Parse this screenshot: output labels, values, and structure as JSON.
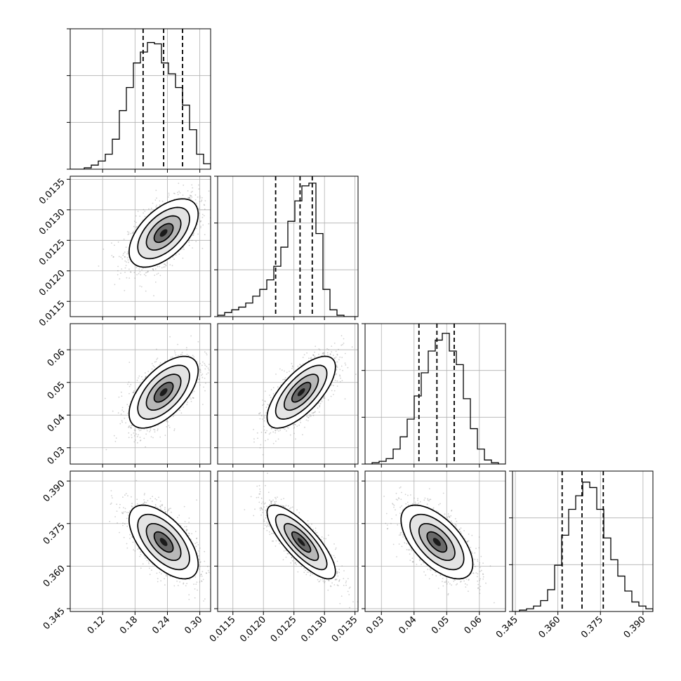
{
  "chart_data": {
    "type": "corner",
    "parameters": [
      {
        "range": [
          0.06,
          0.32
        ],
        "ticks": [
          0.12,
          0.18,
          0.24,
          0.3
        ],
        "tick_labels": [
          "0.12",
          "0.18",
          "0.24",
          "0.30"
        ],
        "quantiles": [
          0.195,
          0.233,
          0.268
        ],
        "median": 0.233,
        "sd": 0.032,
        "hist_ymax": 1.0
      },
      {
        "range": [
          0.01125,
          0.01355
        ],
        "ticks": [
          0.0115,
          0.012,
          0.0125,
          0.013,
          0.0135
        ],
        "tick_labels": [
          "0.0115",
          "0.0120",
          "0.0125",
          "0.0130",
          "0.0135"
        ],
        "quantiles": [
          0.0122,
          0.0126,
          0.0128
        ],
        "median": 0.01262,
        "sd": 0.00028,
        "hist_ymax": 1.0
      },
      {
        "range": [
          0.025,
          0.068
        ],
        "ticks": [
          0.03,
          0.04,
          0.05,
          0.06
        ],
        "tick_labels": [
          "0.03",
          "0.04",
          "0.05",
          "0.06"
        ],
        "quantiles": [
          0.0415,
          0.047,
          0.0523
        ],
        "median": 0.047,
        "sd": 0.0055,
        "hist_ymax": 1.0
      },
      {
        "range": [
          0.344,
          0.3935
        ],
        "ticks": [
          0.345,
          0.36,
          0.375,
          0.39
        ],
        "tick_labels": [
          "0.345",
          "0.360",
          "0.375",
          "0.390"
        ],
        "quantiles": [
          0.3615,
          0.3685,
          0.376
        ],
        "median": 0.3685,
        "sd": 0.0065,
        "hist_ymax": 1.0
      }
    ],
    "histograms": [
      [
        0.0,
        0.0,
        0.01,
        0.03,
        0.06,
        0.11,
        0.22,
        0.43,
        0.6,
        0.78,
        0.86,
        0.93,
        0.92,
        0.78,
        0.7,
        0.6,
        0.47,
        0.29,
        0.11,
        0.04
      ],
      [
        0.01,
        0.03,
        0.05,
        0.07,
        0.1,
        0.15,
        0.2,
        0.27,
        0.37,
        0.51,
        0.7,
        0.85,
        0.96,
        0.98,
        0.61,
        0.2,
        0.05,
        0.01,
        0.0,
        0.0
      ],
      [
        0.0,
        0.01,
        0.02,
        0.04,
        0.11,
        0.2,
        0.33,
        0.5,
        0.67,
        0.83,
        0.91,
        0.96,
        0.83,
        0.73,
        0.48,
        0.26,
        0.11,
        0.03,
        0.01,
        0.0
      ],
      [
        0.0,
        0.01,
        0.02,
        0.04,
        0.08,
        0.16,
        0.34,
        0.56,
        0.75,
        0.85,
        0.95,
        0.91,
        0.75,
        0.54,
        0.38,
        0.26,
        0.15,
        0.07,
        0.04,
        0.02
      ]
    ],
    "correlations": [
      [
        1,
        0.55,
        0.6,
        -0.6
      ],
      [
        0.55,
        1,
        0.7,
        -0.8
      ],
      [
        0.6,
        0.7,
        1,
        -0.6
      ],
      [
        -0.6,
        -0.8,
        -0.6,
        1
      ]
    ],
    "grid": true,
    "xlabel": "",
    "ylabel": "",
    "title": ""
  }
}
